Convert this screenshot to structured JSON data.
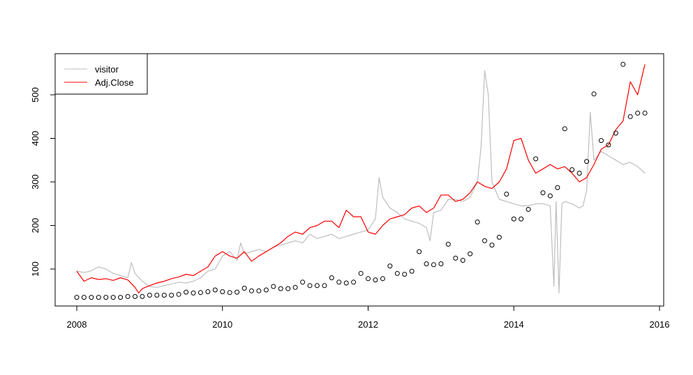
{
  "chart_data": {
    "type": "line",
    "title": "",
    "xlabel": "",
    "ylabel": "",
    "xlim": [
      2007.9,
      2016.05
    ],
    "ylim": [
      20,
      585
    ],
    "x_ticks": [
      "2008",
      "2010",
      "2012",
      "2014",
      "2016"
    ],
    "y_ticks": [
      "100",
      "200",
      "300",
      "400",
      "500"
    ],
    "legend": {
      "position": "top-left",
      "entries": [
        {
          "label": "visitor",
          "color": "#bebebe"
        },
        {
          "label": "Adj.Close",
          "color": "#ff0000"
        }
      ]
    },
    "series": [
      {
        "name": "visitor",
        "style": "line",
        "color": "#bebebe",
        "x": [
          2008.0,
          2008.1,
          2008.2,
          2008.3,
          2008.4,
          2008.5,
          2008.6,
          2008.7,
          2008.75,
          2008.8,
          2008.9,
          2009.0,
          2009.1,
          2009.2,
          2009.3,
          2009.4,
          2009.5,
          2009.6,
          2009.7,
          2009.8,
          2009.9,
          2010.0,
          2010.1,
          2010.2,
          2010.25,
          2010.3,
          2010.4,
          2010.5,
          2010.6,
          2010.7,
          2010.8,
          2010.9,
          2011.0,
          2011.1,
          2011.2,
          2011.3,
          2011.4,
          2011.5,
          2011.6,
          2011.7,
          2011.8,
          2011.9,
          2012.0,
          2012.1,
          2012.15,
          2012.2,
          2012.3,
          2012.4,
          2012.5,
          2012.6,
          2012.7,
          2012.8,
          2012.85,
          2012.9,
          2013.0,
          2013.1,
          2013.2,
          2013.3,
          2013.4,
          2013.5,
          2013.55,
          2013.6,
          2013.65,
          2013.7,
          2013.8,
          2013.9,
          2014.0,
          2014.1,
          2014.2,
          2014.3,
          2014.4,
          2014.5,
          2014.55,
          2014.58,
          2014.62,
          2014.66,
          2014.7,
          2014.8,
          2014.9,
          2014.95,
          2015.0,
          2015.05,
          2015.1,
          2015.2,
          2015.3,
          2015.4,
          2015.5,
          2015.6,
          2015.7,
          2015.8
        ],
        "y": [
          95,
          92,
          96,
          105,
          100,
          90,
          85,
          80,
          115,
          90,
          72,
          60,
          58,
          62,
          66,
          70,
          68,
          72,
          80,
          95,
          100,
          130,
          140,
          120,
          160,
          135,
          140,
          145,
          140,
          150,
          155,
          160,
          165,
          160,
          180,
          170,
          175,
          180,
          170,
          175,
          180,
          185,
          190,
          215,
          310,
          265,
          240,
          230,
          215,
          210,
          205,
          195,
          165,
          230,
          235,
          260,
          260,
          255,
          265,
          300,
          380,
          555,
          500,
          300,
          260,
          255,
          250,
          245,
          245,
          250,
          250,
          245,
          60,
          255,
          45,
          250,
          255,
          250,
          240,
          245,
          280,
          460,
          350,
          370,
          360,
          350,
          340,
          345,
          335,
          320
        ]
      },
      {
        "name": "Adj.Close",
        "style": "line",
        "color": "#ff0000",
        "x": [
          2008.0,
          2008.1,
          2008.2,
          2008.3,
          2008.4,
          2008.5,
          2008.6,
          2008.7,
          2008.8,
          2008.85,
          2008.9,
          2009.0,
          2009.1,
          2009.2,
          2009.3,
          2009.4,
          2009.5,
          2009.6,
          2009.7,
          2009.8,
          2009.9,
          2010.0,
          2010.1,
          2010.2,
          2010.3,
          2010.4,
          2010.5,
          2010.6,
          2010.7,
          2010.8,
          2010.9,
          2011.0,
          2011.1,
          2011.2,
          2011.3,
          2011.4,
          2011.5,
          2011.6,
          2011.7,
          2011.8,
          2011.9,
          2012.0,
          2012.1,
          2012.2,
          2012.3,
          2012.4,
          2012.5,
          2012.6,
          2012.7,
          2012.8,
          2012.9,
          2013.0,
          2013.1,
          2013.2,
          2013.3,
          2013.4,
          2013.5,
          2013.6,
          2013.7,
          2013.8,
          2013.9,
          2014.0,
          2014.1,
          2014.2,
          2014.3,
          2014.4,
          2014.5,
          2014.6,
          2014.7,
          2014.8,
          2014.9,
          2015.0,
          2015.1,
          2015.2,
          2015.3,
          2015.4,
          2015.5,
          2015.6,
          2015.7,
          2015.8
        ],
        "y": [
          95,
          72,
          80,
          76,
          78,
          74,
          80,
          75,
          58,
          45,
          55,
          62,
          68,
          72,
          78,
          82,
          88,
          85,
          95,
          105,
          130,
          140,
          130,
          125,
          140,
          118,
          130,
          140,
          150,
          160,
          175,
          185,
          180,
          195,
          200,
          210,
          210,
          195,
          235,
          220,
          220,
          185,
          180,
          200,
          215,
          220,
          225,
          240,
          245,
          230,
          240,
          270,
          270,
          255,
          260,
          275,
          300,
          290,
          285,
          300,
          330,
          395,
          400,
          350,
          320,
          330,
          340,
          330,
          335,
          320,
          300,
          310,
          340,
          375,
          385,
          420,
          440,
          530,
          500,
          570
        ]
      },
      {
        "name": "",
        "style": "points",
        "color": "#000000",
        "x": [
          2008.0,
          2008.1,
          2008.2,
          2008.3,
          2008.4,
          2008.5,
          2008.6,
          2008.7,
          2008.8,
          2008.9,
          2009.0,
          2009.1,
          2009.2,
          2009.3,
          2009.4,
          2009.5,
          2009.6,
          2009.7,
          2009.8,
          2009.9,
          2010.0,
          2010.1,
          2010.2,
          2010.3,
          2010.4,
          2010.5,
          2010.6,
          2010.7,
          2010.8,
          2010.9,
          2011.0,
          2011.1,
          2011.2,
          2011.3,
          2011.4,
          2011.5,
          2011.6,
          2011.7,
          2011.8,
          2011.9,
          2012.0,
          2012.1,
          2012.2,
          2012.3,
          2012.4,
          2012.5,
          2012.6,
          2012.7,
          2012.8,
          2012.9,
          2013.0,
          2013.1,
          2013.2,
          2013.3,
          2013.4,
          2013.5,
          2013.6,
          2013.7,
          2013.8,
          2013.9,
          2014.0,
          2014.1,
          2014.2,
          2014.3,
          2014.4,
          2014.5,
          2014.6,
          2014.7,
          2014.8,
          2014.9,
          2015.0,
          2015.1,
          2015.2,
          2015.3,
          2015.4,
          2015.5,
          2015.6,
          2015.7,
          2015.8
        ],
        "y": [
          35,
          35,
          35,
          35,
          35,
          35,
          35,
          37,
          37,
          37,
          40,
          40,
          40,
          40,
          42,
          47,
          45,
          46,
          48,
          52,
          48,
          46,
          47,
          56,
          50,
          50,
          52,
          60,
          55,
          55,
          58,
          70,
          62,
          62,
          62,
          80,
          70,
          68,
          70,
          90,
          78,
          75,
          78,
          107,
          90,
          88,
          95,
          140,
          112,
          110,
          112,
          157,
          125,
          120,
          135,
          208,
          165,
          155,
          173,
          272,
          215,
          215,
          237,
          353,
          275,
          268,
          287,
          422,
          328,
          320,
          347,
          502,
          395,
          385,
          412,
          570,
          450,
          458,
          458
        ]
      }
    ]
  }
}
